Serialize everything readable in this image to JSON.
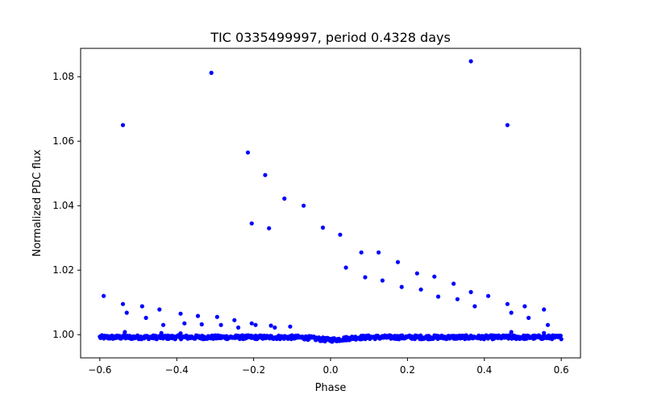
{
  "chart_data": {
    "type": "scatter",
    "title": "TIC 0335499997, period 0.4328 days",
    "xlabel": "Phase",
    "ylabel": "Normalized PDC flux",
    "xlim": [
      -0.65,
      0.65
    ],
    "ylim": [
      0.9928,
      1.0888
    ],
    "x_ticks": [
      -0.6,
      -0.4,
      -0.2,
      0.0,
      0.2,
      0.4,
      0.6
    ],
    "x_tick_labels": [
      "−0.6",
      "−0.4",
      "−0.2",
      "0.0",
      "0.2",
      "0.4",
      "0.6"
    ],
    "y_ticks": [
      1.0,
      1.02,
      1.04,
      1.06,
      1.08
    ],
    "y_tick_labels": [
      "1.00",
      "1.02",
      "1.04",
      "1.06",
      "1.08"
    ],
    "grid": false,
    "marker_color": "#0000ff",
    "series": [
      {
        "baseline_band": {
          "x_range": [
            -0.6,
            0.6
          ],
          "y_center": 0.9992,
          "y_scatter": 0.0012
        },
        "points": [
          [
            -0.59,
            1.012
          ],
          [
            -0.54,
            1.065
          ],
          [
            -0.54,
            1.0095
          ],
          [
            -0.53,
            1.0068
          ],
          [
            -0.49,
            1.0088
          ],
          [
            -0.48,
            1.0052
          ],
          [
            -0.445,
            1.0078
          ],
          [
            -0.435,
            1.003
          ],
          [
            -0.39,
            1.0065
          ],
          [
            -0.38,
            1.0035
          ],
          [
            -0.345,
            1.0058
          ],
          [
            -0.335,
            1.0032
          ],
          [
            -0.31,
            1.0812
          ],
          [
            -0.295,
            1.0055
          ],
          [
            -0.285,
            1.003
          ],
          [
            -0.25,
            1.0045
          ],
          [
            -0.24,
            1.0022
          ],
          [
            -0.215,
            1.0565
          ],
          [
            -0.205,
            1.0345
          ],
          [
            -0.205,
            1.0035
          ],
          [
            -0.195,
            1.003
          ],
          [
            -0.17,
            1.0495
          ],
          [
            -0.16,
            1.033
          ],
          [
            -0.155,
            1.0028
          ],
          [
            -0.145,
            1.0022
          ],
          [
            -0.12,
            1.0422
          ],
          [
            -0.105,
            1.0025
          ],
          [
            -0.07,
            1.04
          ],
          [
            -0.02,
            1.0332
          ],
          [
            0.025,
            1.031
          ],
          [
            0.04,
            1.0208
          ],
          [
            0.08,
            1.0255
          ],
          [
            0.09,
            1.0178
          ],
          [
            0.125,
            1.0255
          ],
          [
            0.135,
            1.0168
          ],
          [
            0.175,
            1.0225
          ],
          [
            0.185,
            1.0148
          ],
          [
            0.225,
            1.019
          ],
          [
            0.235,
            1.014
          ],
          [
            0.27,
            1.018
          ],
          [
            0.28,
            1.0118
          ],
          [
            0.32,
            1.0158
          ],
          [
            0.33,
            1.011
          ],
          [
            0.365,
            1.0848
          ],
          [
            0.365,
            1.0132
          ],
          [
            0.375,
            1.0088
          ],
          [
            0.41,
            1.012
          ],
          [
            0.46,
            1.065
          ],
          [
            0.46,
            1.0095
          ],
          [
            0.47,
            1.0068
          ],
          [
            0.505,
            1.0088
          ],
          [
            0.515,
            1.0052
          ],
          [
            0.555,
            1.0078
          ],
          [
            0.565,
            1.003
          ],
          [
            -0.535,
            1.0008
          ],
          [
            -0.44,
            1.0005
          ],
          [
            -0.39,
            1.0004
          ],
          [
            0.47,
            1.0008
          ],
          [
            0.555,
            1.0005
          ]
        ]
      }
    ]
  }
}
